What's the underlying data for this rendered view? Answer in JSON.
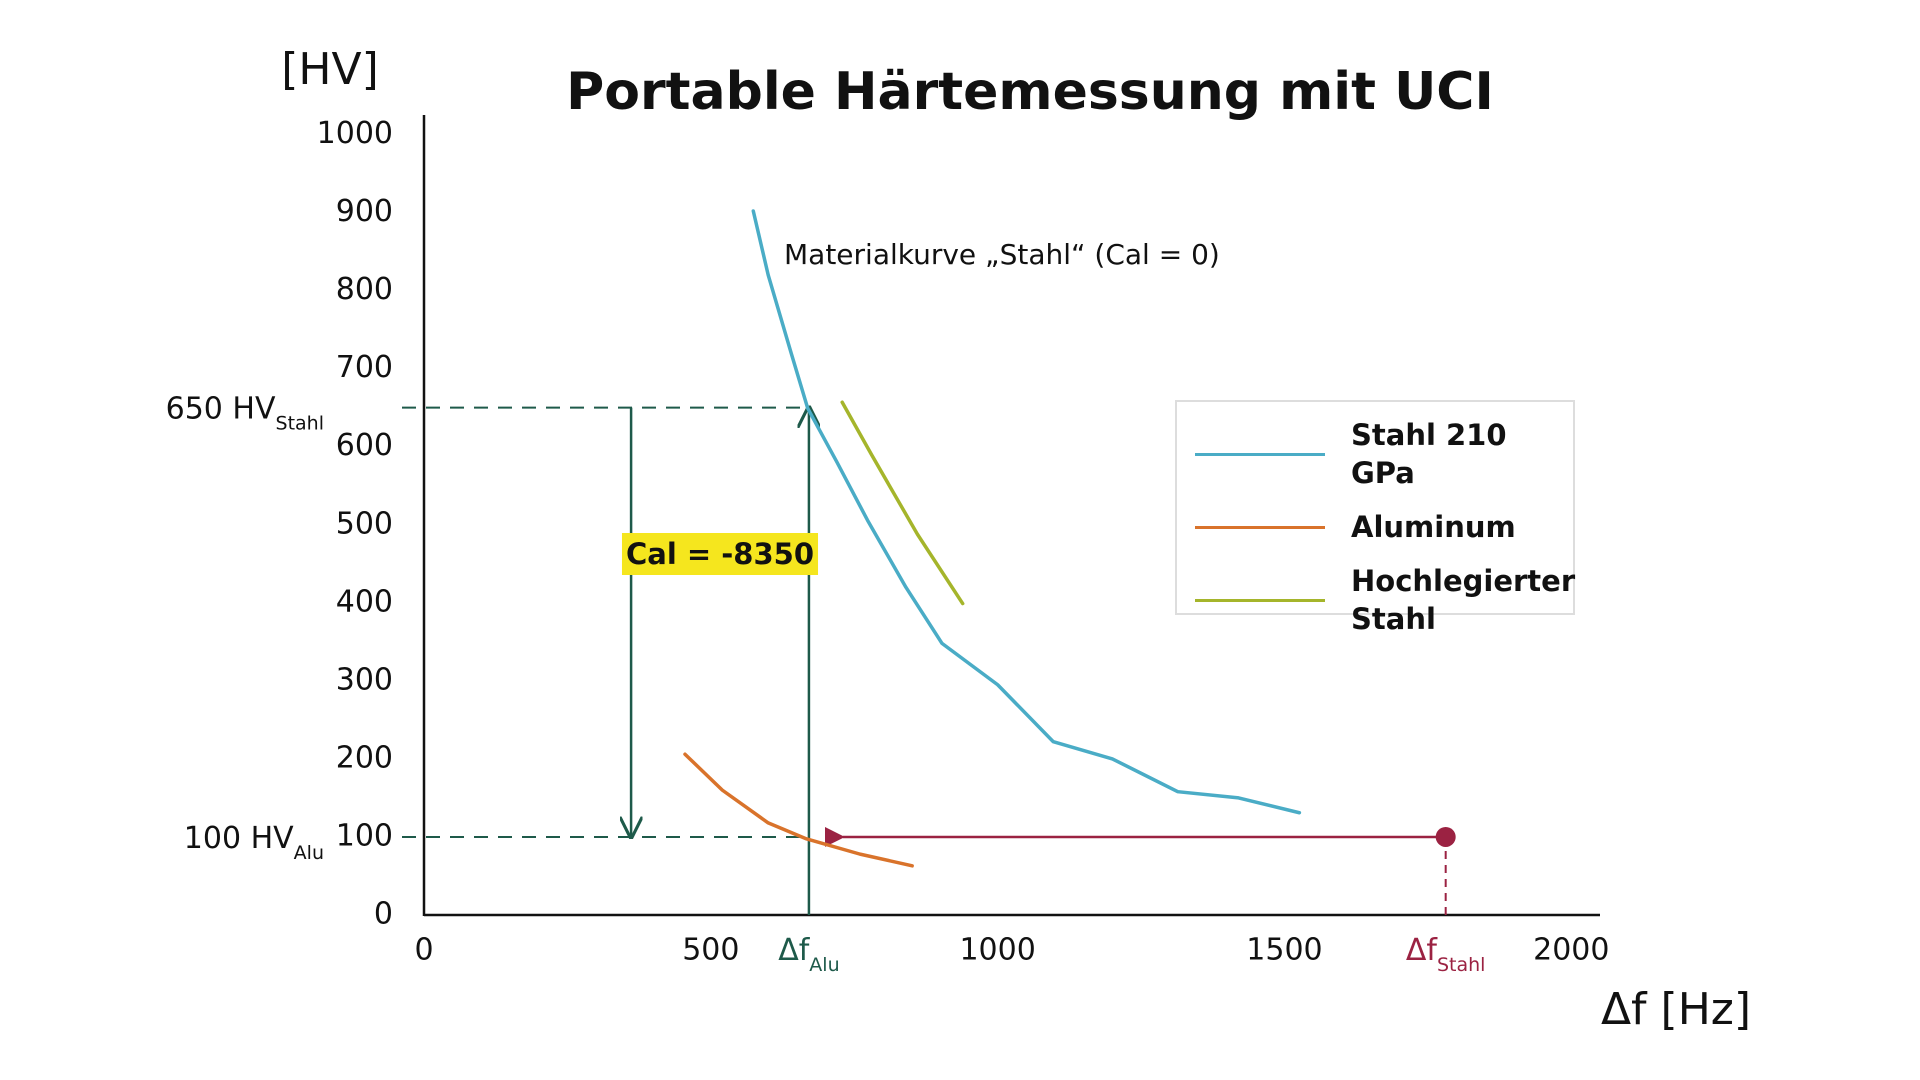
{
  "chart_data": {
    "type": "line",
    "title": "Portable Härtemessung mit UCI",
    "x_label": "Δf [Hz]",
    "y_label": "[HV]",
    "xlim": [
      0,
      2050
    ],
    "ylim": [
      0,
      1025
    ],
    "xticks": [
      0,
      500,
      1000,
      1500,
      2000
    ],
    "yticks": [
      0,
      100,
      200,
      300,
      400,
      500,
      600,
      700,
      800,
      900,
      1000
    ],
    "grid": false,
    "legend": "upper right",
    "series": [
      {
        "name": "Stahl 210 GPa",
        "color": "#4aacc6",
        "x": [
          574,
          600,
          640,
          669,
          720,
          773,
          840,
          903,
          1000,
          1097,
          1200,
          1314,
          1420,
          1526
        ],
        "values": [
          902,
          820,
          720,
          649,
          580,
          506,
          420,
          348,
          295,
          222,
          200,
          158,
          150,
          131
        ]
      },
      {
        "name": "Aluminum",
        "color": "#d9732b",
        "x": [
          455,
          520,
          600,
          665,
          760,
          851
        ],
        "values": [
          206,
          160,
          118,
          98,
          78,
          63
        ]
      },
      {
        "name": "Hochlegierter Stahl",
        "color": "#a5b52b",
        "x": [
          729,
          780,
          860,
          939
        ],
        "values": [
          657,
          590,
          488,
          399
        ]
      }
    ],
    "curve_label": "Materialkurve „Stahl“ (Cal = 0)",
    "reference_lines": [
      {
        "label": "650 HV",
        "sub": "Stahl",
        "y": 650
      },
      {
        "label": "100 HV",
        "sub": "Alu",
        "y": 100
      }
    ],
    "frequency_markers": [
      {
        "label": "Δf",
        "sub": "Alu",
        "x": 671,
        "color": "#1e5a4a"
      },
      {
        "label": "Δf",
        "sub": "Stahl",
        "x": 1781,
        "color": "#9b2242"
      }
    ],
    "calibration": {
      "label": "Cal = -8350",
      "x": 361
    }
  }
}
